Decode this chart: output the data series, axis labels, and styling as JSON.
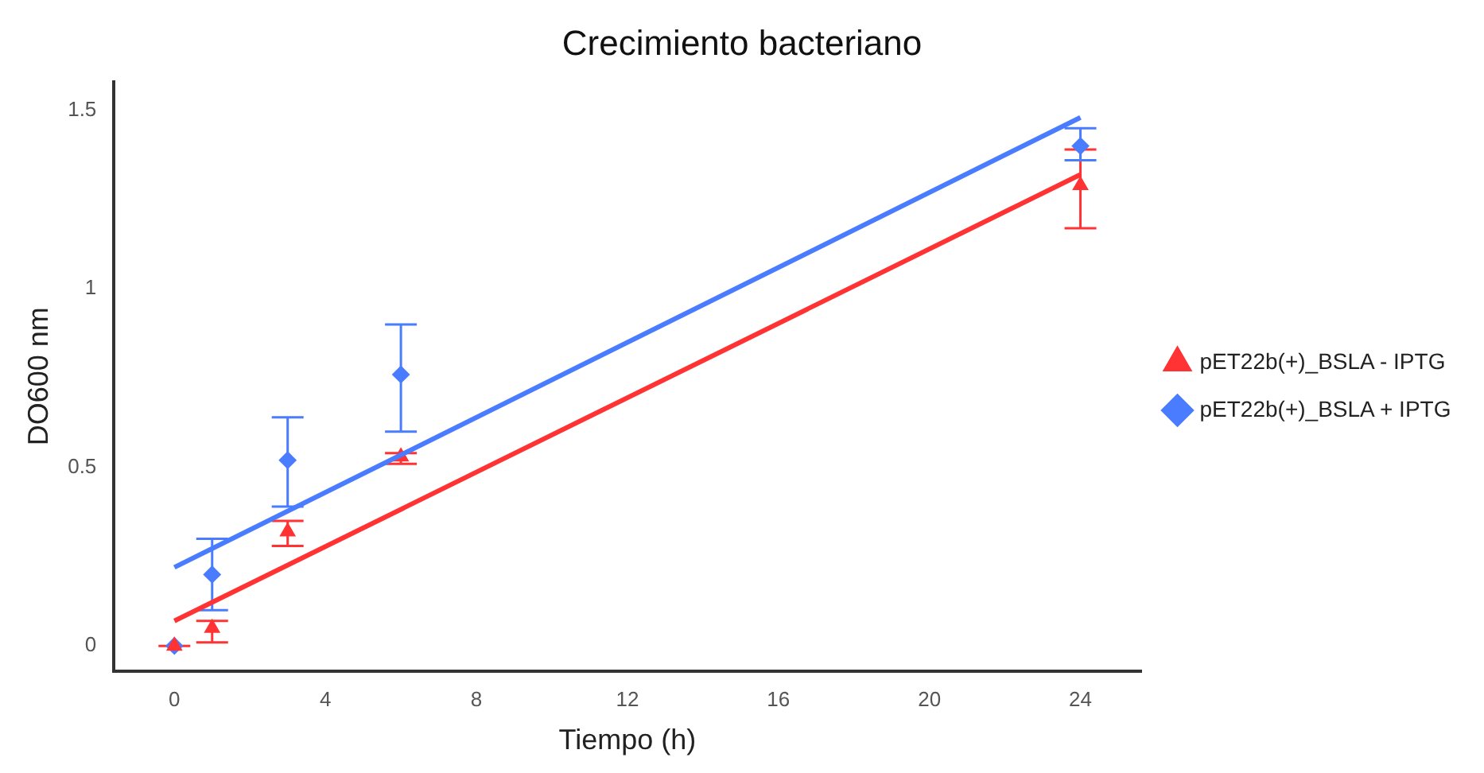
{
  "chart_data": {
    "type": "scatter",
    "title": "Crecimiento bacteriano",
    "xlabel": "Tiempo (h)",
    "ylabel": "DO600 nm",
    "xlim": [
      -1.6,
      25.6
    ],
    "xticks": [
      0,
      4,
      8,
      12,
      16,
      20,
      24
    ],
    "ylim": [
      -0.07,
      1.58
    ],
    "yticks": [
      0.0,
      0.5,
      1.0,
      1.5
    ],
    "grid": false,
    "legend": "right",
    "series": [
      {
        "type": "line",
        "color": "#ff3333",
        "x": [
          0,
          24
        ],
        "values": [
          0.07,
          1.32
        ]
      },
      {
        "type": "line",
        "color": "#4a7cff",
        "x": [
          0,
          24
        ],
        "values": [
          0.22,
          1.48
        ]
      },
      {
        "type": "scatter",
        "name": "pET22b(+)_BSLA - IPTG",
        "color": "#ff3333",
        "marker": "triangle",
        "x": [
          0,
          1,
          3,
          6,
          24
        ],
        "values": [
          0.0,
          0.05,
          0.32,
          0.53,
          1.29
        ],
        "errors": [
          [
            0.0,
            0.0
          ],
          [
            0.01,
            0.07
          ],
          [
            0.28,
            0.35
          ],
          [
            0.51,
            0.54
          ],
          [
            1.17,
            1.39
          ]
        ]
      },
      {
        "type": "scatter",
        "name": "pET22b(+)_BSLA + IPTG",
        "color": "#4a7cff",
        "marker": "diamond",
        "x": [
          0,
          1,
          3,
          6,
          24
        ],
        "values": [
          0.0,
          0.2,
          0.52,
          0.76,
          1.4
        ],
        "errors": [
          null,
          [
            0.1,
            0.3
          ],
          [
            0.39,
            0.64
          ],
          [
            0.6,
            0.9
          ],
          [
            1.36,
            1.45
          ]
        ]
      }
    ]
  }
}
